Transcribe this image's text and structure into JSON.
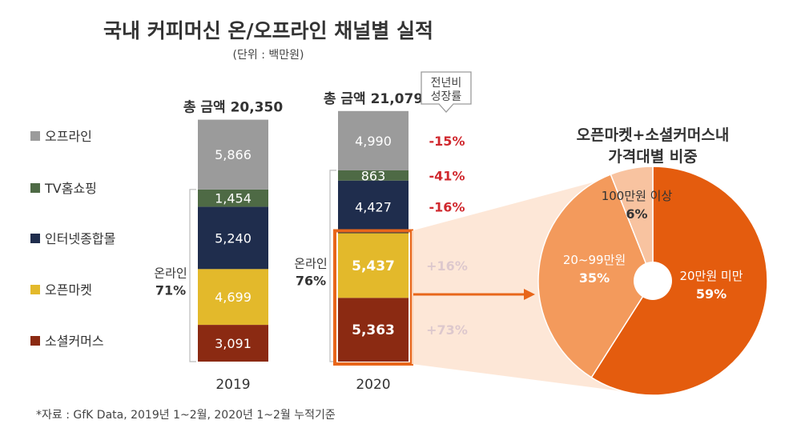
{
  "title": "국내 커피머신 온/오프라인 채널별 실적",
  "unit_note": "(단위 : 백만원)",
  "growth_header_line1": "전년비",
  "growth_header_line2": "성장률",
  "footnote": "*자료 : GfK Data, 2019년 1~2월, 2020년 1~2월 누적기준",
  "colors": {
    "offline": "#9b9b9b",
    "tv": "#4e6a45",
    "internet": "#1f2d4d",
    "openmarket": "#e3b92b",
    "social": "#8b2a12",
    "highlight": "#e8661a",
    "growth_negative": "#d0282e",
    "growth_positive": "#2a2fb8",
    "pie_large": "#e45c0e",
    "pie_mid": "#f39a5c",
    "pie_small": "#f8c3a0"
  },
  "chart_data": [
    {
      "type": "bar",
      "stacked": true,
      "categories": [
        "2019",
        "2020"
      ],
      "totals_label": [
        "총 금액 20,350",
        "총 금액 21,079"
      ],
      "series": [
        {
          "key": "social",
          "name": "소셜커머스",
          "values": [
            3091,
            5363
          ],
          "labels": [
            "3,091",
            "5,363"
          ]
        },
        {
          "key": "openmarket",
          "name": "오픈마켓",
          "values": [
            4699,
            5437
          ],
          "labels": [
            "4,699",
            "5,437"
          ]
        },
        {
          "key": "internet",
          "name": "인터넷종합몰",
          "values": [
            5240,
            4427
          ],
          "labels": [
            "5,240",
            "4,427"
          ]
        },
        {
          "key": "tv",
          "name": "TV홈쇼핑",
          "values": [
            1454,
            863
          ],
          "labels": [
            "1,454",
            "863"
          ]
        },
        {
          "key": "offline",
          "name": "오프라인",
          "values": [
            5866,
            4990
          ],
          "labels": [
            "5,866",
            "4,990"
          ]
        }
      ],
      "online_share": [
        {
          "label": "온라인",
          "value": "71%"
        },
        {
          "label": "온라인",
          "value": "76%"
        }
      ],
      "growth_2020": [
        {
          "series": "offline",
          "label": "-15%"
        },
        {
          "series": "tv",
          "label": "-41%"
        },
        {
          "series": "internet",
          "label": "-16%"
        },
        {
          "series": "openmarket",
          "label": "+16%"
        },
        {
          "series": "social",
          "label": "+73%"
        }
      ],
      "legend_placement": "left"
    },
    {
      "type": "pie",
      "title_line1": "오픈마켓+소셜커머스내",
      "title_line2": "가격대별 비중",
      "slices": [
        {
          "name": "20만원 미만",
          "value": 59,
          "label": "59%"
        },
        {
          "name": "20~99만원",
          "value": 35,
          "label": "35%"
        },
        {
          "name": "100만원 이상",
          "value": 6,
          "label": "6%"
        }
      ]
    }
  ]
}
